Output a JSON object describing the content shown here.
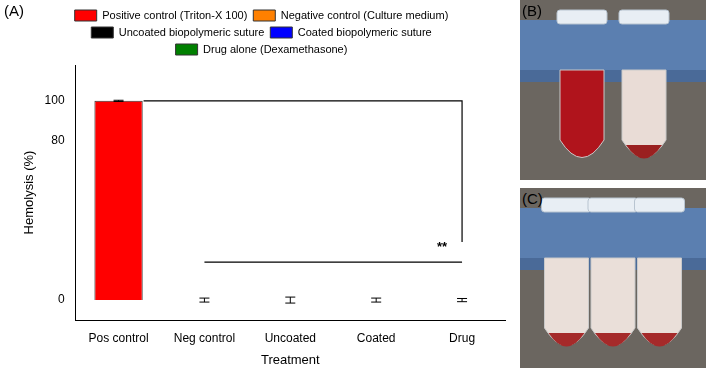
{
  "chart_data": {
    "type": "bar",
    "panel_label": "(A)",
    "x_label": "Treatment",
    "y_label": "Hemolysis (%)",
    "categories": [
      "Pos control",
      "Neg control",
      "Uncoated",
      "Coated",
      "Drug"
    ],
    "series": [
      {
        "name": "Positive control (Triton-X 100)",
        "color": "#ff0000",
        "values": [
          100,
          null,
          null,
          null,
          null
        ],
        "errors": [
          0.3,
          null,
          null,
          null,
          null
        ]
      },
      {
        "name": "Negative control (Culture medium)",
        "color": "#ff8000",
        "values": [
          null,
          0,
          null,
          null,
          null
        ],
        "errors": [
          null,
          1,
          null,
          null,
          null
        ]
      },
      {
        "name": "Uncoated biopolymeric suture",
        "color": "#000000",
        "values": [
          null,
          null,
          0,
          null,
          null
        ],
        "errors": [
          null,
          null,
          1.5,
          null,
          null
        ]
      },
      {
        "name": "Coated biopolymeric suture",
        "color": "#0000ff",
        "values": [
          null,
          null,
          null,
          0,
          null
        ],
        "errors": [
          null,
          null,
          null,
          1,
          null
        ]
      },
      {
        "name": "Drug alone (Dexamethasone)",
        "color": "#008000",
        "values": [
          null,
          null,
          null,
          null,
          0
        ],
        "errors": [
          null,
          null,
          null,
          null,
          0.8
        ]
      }
    ],
    "ylim": [
      -10,
      118
    ],
    "yticks": [
      0,
      80,
      100
    ],
    "annotations": [
      "**"
    ],
    "grid": false,
    "legend": "top"
  },
  "panels": [
    {
      "label": "(B)"
    },
    {
      "label": "(C)"
    }
  ]
}
